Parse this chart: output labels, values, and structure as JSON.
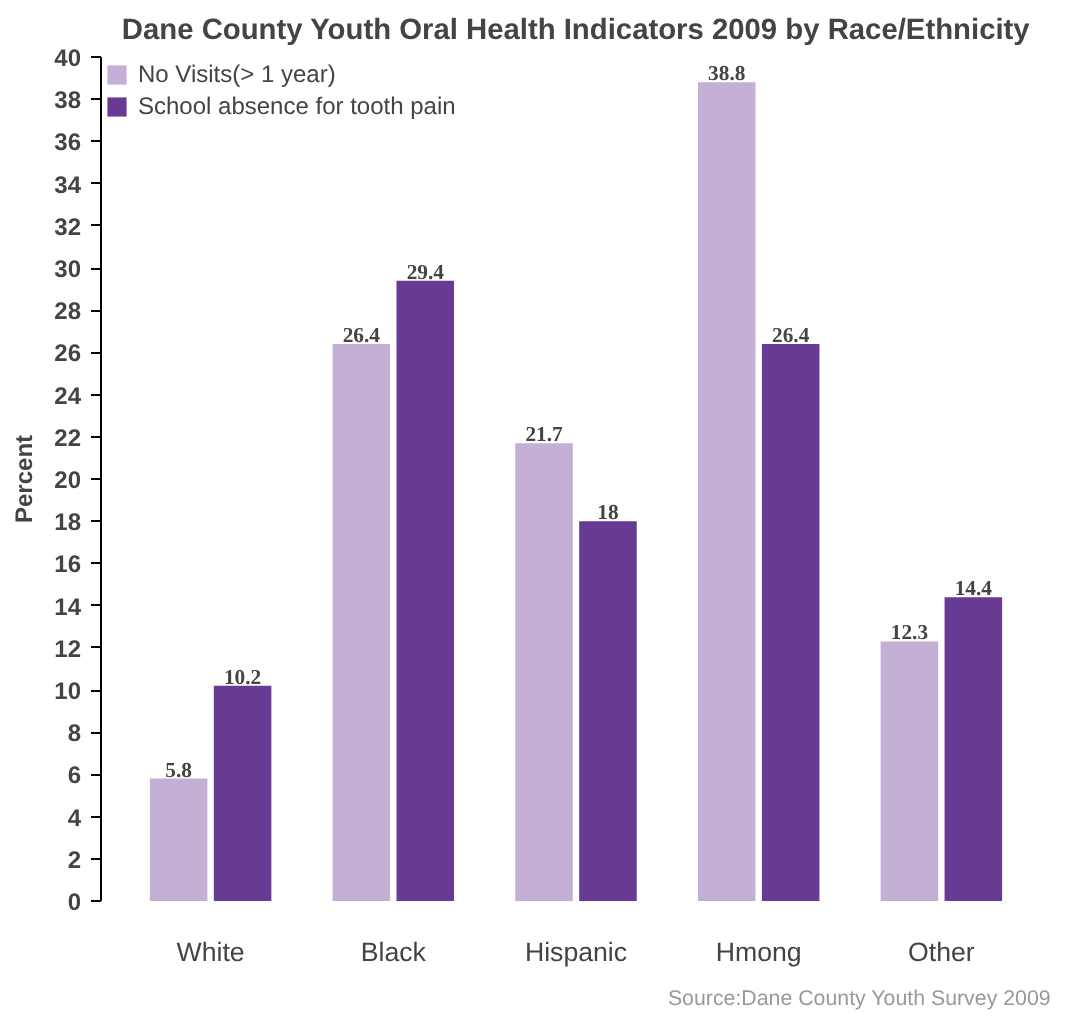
{
  "chart_data": {
    "type": "bar",
    "title": "Dane County Youth Oral Health Indicators 2009 by Race/Ethnicity",
    "ylabel": "Percent",
    "categories": [
      "White",
      "Black",
      "Hispanic",
      "Hmong",
      "Other"
    ],
    "series": [
      {
        "name": "No Visits(> 1 year)",
        "color": "#c5b0d5",
        "values": [
          5.8,
          26.4,
          21.7,
          38.8,
          12.3
        ]
      },
      {
        "name": "School absence for tooth pain",
        "color": "#673a93",
        "values": [
          10.2,
          29.4,
          18,
          26.4,
          14.4
        ]
      }
    ],
    "ylim": [
      0,
      40
    ],
    "yticks": [
      0,
      2,
      4,
      6,
      8,
      10,
      12,
      14,
      16,
      18,
      20,
      22,
      24,
      26,
      28,
      30,
      32,
      34,
      36,
      38,
      40
    ],
    "data_labels": true,
    "grid": false,
    "legend": "top left",
    "annotations": [
      "Source:Dane County Youth Survey 2009"
    ]
  }
}
